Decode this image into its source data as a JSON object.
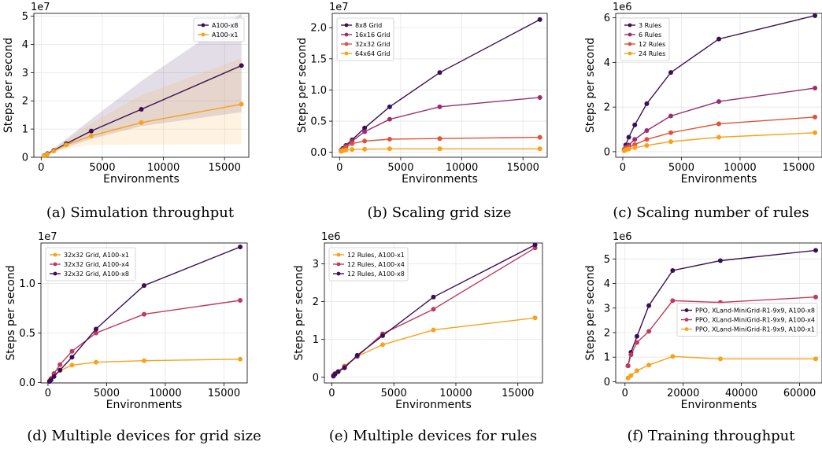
{
  "chart_data": [
    {
      "type": "line",
      "caption": "(a) Simulation throughput",
      "xlabel": "Environments",
      "ylabel": "Steps per second",
      "offset_label": "1e7",
      "xlim": [
        -600,
        16984
      ],
      "ylim": [
        -1.0,
        51000000
      ],
      "xticks": [
        0,
        5000,
        10000,
        15000
      ],
      "yticks": [
        0,
        10000000,
        20000000,
        30000000,
        40000000,
        50000000
      ],
      "ytick_labels": [
        "0",
        "1",
        "2",
        "3",
        "4",
        "5"
      ],
      "legend_position": "top-right",
      "series": [
        {
          "name": "A100-x8",
          "color": "#3b0f55",
          "x": [
            256,
            512,
            1024,
            2048,
            4096,
            8192,
            16384
          ],
          "y": [
            600000,
            1300000,
            2400000,
            4800000,
            9300000,
            17000000,
            32500000
          ],
          "band_low": [
            500000,
            1000000,
            2000000,
            3500000,
            6500000,
            11000000,
            16000000
          ],
          "band_high": [
            800000,
            1700000,
            3200000,
            6500000,
            13500000,
            27000000,
            51000000
          ]
        },
        {
          "name": "A100-x1",
          "color": "#f7a21a",
          "x": [
            256,
            512,
            1024,
            2048,
            4096,
            8192,
            16384
          ],
          "y": [
            500000,
            1100000,
            2200000,
            4400000,
            7600000,
            12300000,
            18800000
          ],
          "band_low": [
            400000,
            800000,
            1600000,
            3000000,
            4400000,
            4500000,
            4600000
          ],
          "band_high": [
            700000,
            1500000,
            3000000,
            6000000,
            12000000,
            22000000,
            35000000
          ]
        }
      ]
    },
    {
      "type": "line",
      "caption": "(b) Scaling grid size",
      "xlabel": "Environments",
      "ylabel": "Steps per second",
      "offset_label": "1e7",
      "xlim": [
        -600,
        16984
      ],
      "ylim": [
        -800000,
        22300000
      ],
      "xticks": [
        0,
        5000,
        10000,
        15000
      ],
      "yticks": [
        0,
        5000000,
        10000000,
        15000000,
        20000000
      ],
      "ytick_labels": [
        "0.0",
        "0.5",
        "1.0",
        "1.5",
        "2.0"
      ],
      "legend_position": "top-left",
      "series": [
        {
          "name": "8x8 Grid",
          "color": "#3b0f55",
          "x": [
            128,
            256,
            512,
            1024,
            2048,
            4096,
            8192,
            16384
          ],
          "y": [
            300000,
            600000,
            1100000,
            2000000,
            3900000,
            7300000,
            12800000,
            21300000
          ]
        },
        {
          "name": "16x16 Grid",
          "color": "#9b2d6e",
          "x": [
            128,
            256,
            512,
            1024,
            2048,
            4096,
            8192,
            16384
          ],
          "y": [
            250000,
            500000,
            1000000,
            1800000,
            3300000,
            5300000,
            7300000,
            8800000
          ]
        },
        {
          "name": "32x32 Grid",
          "color": "#e0523a",
          "x": [
            128,
            256,
            512,
            1024,
            2048,
            4096,
            8192,
            16384
          ],
          "y": [
            200000,
            400000,
            800000,
            1400000,
            1800000,
            2100000,
            2200000,
            2400000
          ]
        },
        {
          "name": "64x64 Grid",
          "color": "#f7a21a",
          "x": [
            128,
            256,
            512,
            1024,
            2048,
            4096,
            8192,
            16384
          ],
          "y": [
            150000,
            250000,
            350000,
            450000,
            500000,
            550000,
            550000,
            550000
          ]
        }
      ]
    },
    {
      "type": "line",
      "caption": "(c) Scaling number of rules",
      "xlabel": "Environments",
      "ylabel": "Steps per second",
      "offset_label": "1e6",
      "xlim": [
        -600,
        16984
      ],
      "ylim": [
        -250000,
        6200000
      ],
      "xticks": [
        0,
        5000,
        10000,
        15000
      ],
      "yticks": [
        0,
        2000000,
        4000000,
        6000000
      ],
      "ytick_labels": [
        "0",
        "2",
        "4",
        "6"
      ],
      "legend_position": "top-left",
      "series": [
        {
          "name": "3 Rules",
          "color": "#3b0f55",
          "x": [
            128,
            256,
            512,
            1024,
            2048,
            4096,
            8192,
            16384
          ],
          "y": [
            100000,
            300000,
            650000,
            1200000,
            2150000,
            3550000,
            5050000,
            6100000
          ]
        },
        {
          "name": "6 Rules",
          "color": "#9b2d6e",
          "x": [
            128,
            256,
            512,
            1024,
            2048,
            4096,
            8192,
            16384
          ],
          "y": [
            80000,
            200000,
            300000,
            550000,
            950000,
            1600000,
            2250000,
            2850000
          ]
        },
        {
          "name": "12 Rules",
          "color": "#e0523a",
          "x": [
            128,
            256,
            512,
            1024,
            2048,
            4096,
            8192,
            16384
          ],
          "y": [
            60000,
            150000,
            200000,
            320000,
            550000,
            850000,
            1250000,
            1550000
          ]
        },
        {
          "name": "24 Rules",
          "color": "#f7a21a",
          "x": [
            128,
            256,
            512,
            1024,
            2048,
            4096,
            8192,
            16384
          ],
          "y": [
            40000,
            80000,
            120000,
            180000,
            280000,
            450000,
            650000,
            850000
          ]
        }
      ]
    },
    {
      "type": "line",
      "caption": "(d) Multiple devices for grid size",
      "xlabel": "Environments",
      "ylabel": "Steps per second",
      "offset_label": "1e7",
      "xlim": [
        -600,
        16984
      ],
      "ylim": [
        -50000,
        14100000
      ],
      "xticks": [
        0,
        5000,
        10000,
        15000
      ],
      "yticks": [
        0,
        5000000,
        10000000
      ],
      "ytick_labels": [
        "0.0",
        "0.5",
        "1.0"
      ],
      "legend_position": "top-left",
      "series": [
        {
          "name": "32x32 Grid, A100-x1",
          "color": "#f7a21a",
          "x": [
            128,
            256,
            512,
            1024,
            2048,
            4096,
            8192,
            16384
          ],
          "y": [
            150000,
            350000,
            700000,
            1200000,
            1750000,
            2050000,
            2200000,
            2350000
          ]
        },
        {
          "name": "32x32 Grid, A100-x4",
          "color": "#c03a5e",
          "x": [
            128,
            256,
            512,
            1024,
            2048,
            4096,
            8192,
            16384
          ],
          "y": [
            150000,
            400000,
            900000,
            1800000,
            3150000,
            5000000,
            6900000,
            8300000
          ]
        },
        {
          "name": "32x32 Grid, A100-x8",
          "color": "#3b0f55",
          "x": [
            128,
            256,
            512,
            1024,
            2048,
            4096,
            8192,
            16384
          ],
          "y": [
            100000,
            250000,
            600000,
            1250000,
            2550000,
            5400000,
            9800000,
            13700000
          ]
        }
      ]
    },
    {
      "type": "line",
      "caption": "(e) Multiple devices for rules",
      "xlabel": "Environments",
      "ylabel": "Steps per second",
      "offset_label": "1e6",
      "xlim": [
        -600,
        16984
      ],
      "ylim": [
        -150000,
        3550000
      ],
      "xticks": [
        0,
        5000,
        10000,
        15000
      ],
      "yticks": [
        0,
        1000000,
        2000000,
        3000000
      ],
      "ytick_labels": [
        "0",
        "1",
        "2",
        "3"
      ],
      "legend_position": "top-left",
      "series": [
        {
          "name": "12 Rules, A100-x1",
          "color": "#f7a21a",
          "x": [
            128,
            256,
            512,
            1024,
            2048,
            4096,
            8192,
            16384
          ],
          "y": [
            50000,
            100000,
            150000,
            300000,
            550000,
            860000,
            1250000,
            1570000
          ]
        },
        {
          "name": "12 Rules, A100-x4",
          "color": "#c03a5e",
          "x": [
            128,
            256,
            512,
            1024,
            2048,
            4096,
            8192,
            16384
          ],
          "y": [
            50000,
            100000,
            150000,
            280000,
            550000,
            1150000,
            1800000,
            3420000
          ]
        },
        {
          "name": "12 Rules, A100-x8",
          "color": "#3b0f55",
          "x": [
            128,
            256,
            512,
            1024,
            2048,
            4096,
            8192,
            16384
          ],
          "y": [
            30000,
            80000,
            150000,
            250000,
            580000,
            1100000,
            2120000,
            3500000
          ]
        }
      ]
    },
    {
      "type": "line",
      "caption": "(f) Training throughput",
      "xlabel": "Environments",
      "ylabel": "Steps per second",
      "offset_label": "1e6",
      "xlim": [
        -3200,
        67700
      ],
      "ylim": [
        -50000,
        5650000
      ],
      "xticks": [
        0,
        20000,
        40000,
        60000
      ],
      "yticks": [
        0,
        1000000,
        2000000,
        3000000,
        4000000,
        5000000
      ],
      "ytick_labels": [
        "0",
        "1",
        "2",
        "3",
        "4",
        "5"
      ],
      "legend_position": "center-right",
      "series": [
        {
          "name": "PPO, XLand-MiniGrid-R1-9x9, A100-x8",
          "color": "#3b0f55",
          "x": [
            1024,
            2048,
            4096,
            8192,
            16384,
            32768,
            65536
          ],
          "y": [
            650000,
            1200000,
            1850000,
            3100000,
            4530000,
            4930000,
            5350000
          ]
        },
        {
          "name": "PPO, XLand-MiniGrid-R1-9x9, A100-x4",
          "color": "#c03a5e",
          "x": [
            1024,
            2048,
            4096,
            8192,
            16384,
            32768,
            65536
          ],
          "y": [
            650000,
            1100000,
            1600000,
            2050000,
            3300000,
            3230000,
            3450000
          ]
        },
        {
          "name": "PPO, XLand-MiniGrid-R1-9x9, A100-x1",
          "color": "#f7a21a",
          "x": [
            1024,
            2048,
            4096,
            8192,
            16384,
            32768,
            65536
          ],
          "y": [
            150000,
            250000,
            450000,
            680000,
            1030000,
            930000,
            930000
          ]
        }
      ]
    }
  ]
}
